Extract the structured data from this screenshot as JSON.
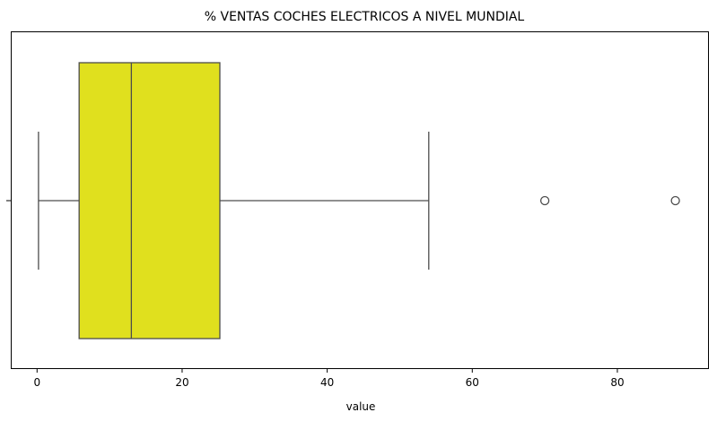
{
  "chart_data": {
    "type": "boxplot",
    "title": "% VENTAS COCHES ELECTRICOS A NIVEL MUNDIAL",
    "xlabel": "value",
    "ylabel": "",
    "xlim": [
      -3.5,
      92.5
    ],
    "xticks": [
      0,
      20,
      40,
      60,
      80
    ],
    "orientation": "horizontal",
    "grid": false,
    "box": {
      "whisker_low": 0.2,
      "q1": 5.8,
      "median": 13.0,
      "q3": 25.2,
      "whisker_high": 54.0,
      "outliers": [
        70.0,
        88.0
      ]
    },
    "colors": {
      "box_fill": "#e0e01e",
      "line": "#4d4d4d"
    }
  }
}
